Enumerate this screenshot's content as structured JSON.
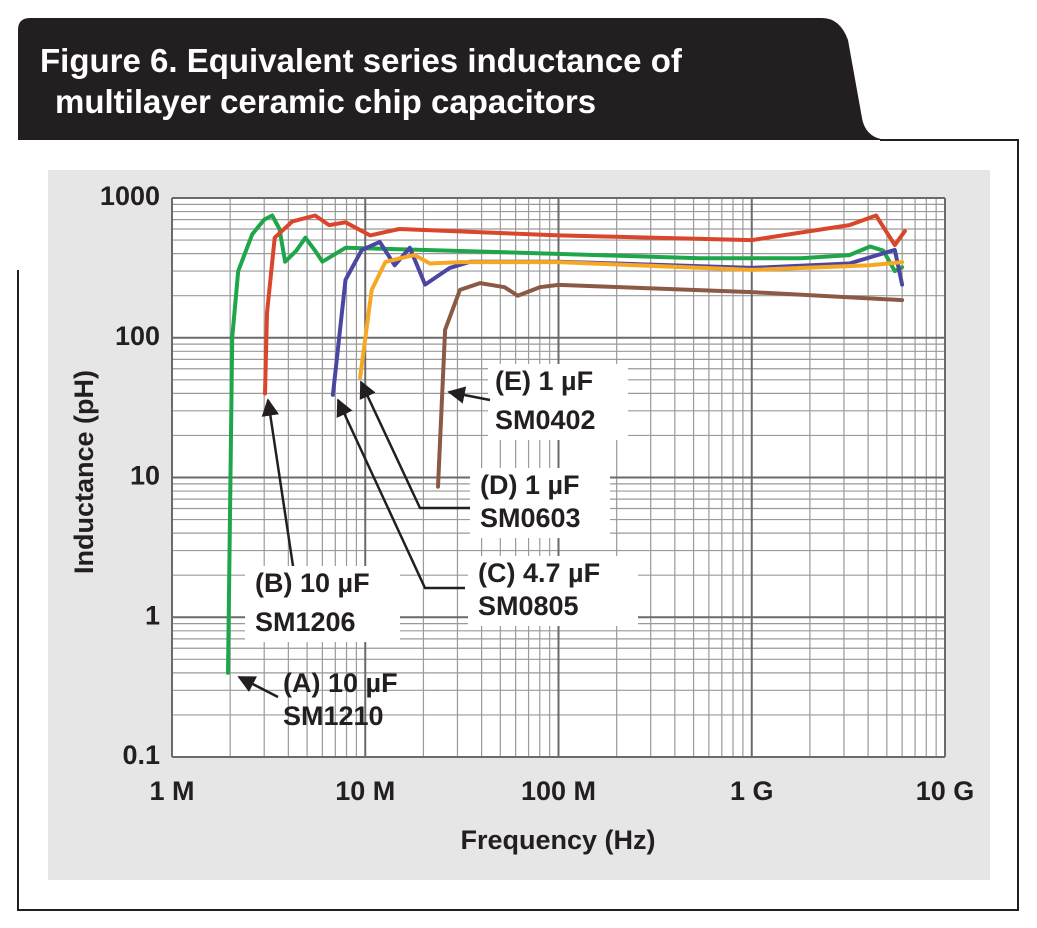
{
  "chart_data": {
    "type": "line",
    "title": [
      "Figure 6. Equivalent series inductance of",
      "multilayer ceramic chip capacitors"
    ],
    "x_label": "Frequency (Hz)",
    "y_label": "Inductance (pH)",
    "xscale": "log",
    "yscale": "log",
    "grid": true,
    "xlim": [
      1000000,
      10000000000
    ],
    "ylim": [
      0.1,
      1000
    ],
    "xticks": [
      {
        "value": 1000000,
        "label": "1 M"
      },
      {
        "value": 10000000,
        "label": "10 M"
      },
      {
        "value": 100000000,
        "label": "100 M"
      },
      {
        "value": 1000000000,
        "label": "1 G"
      },
      {
        "value": 10000000000,
        "label": "10 G"
      }
    ],
    "yticks": [
      0.1,
      1,
      10,
      100,
      1000
    ],
    "series": [
      {
        "name": "(A) 10 µF SM1210",
        "color": "#1fa64a",
        "x": [
          1950000,
          2000000,
          2050000,
          2200000,
          2600000,
          3000000,
          3300000,
          3600000,
          3850000,
          4400000,
          4900000,
          5500000,
          6000000,
          7900000,
          15000000,
          50000000,
          160000000,
          540000000,
          1800000000,
          3200000000,
          4100000000,
          4800000000,
          5500000000,
          6000000000
        ],
        "values": [
          0.4,
          7,
          100,
          300,
          550,
          700,
          750,
          600,
          350,
          420,
          520,
          420,
          350,
          440,
          430,
          410,
          390,
          370,
          370,
          390,
          450,
          420,
          300,
          320
        ]
      },
      {
        "name": "(B) 10 µF SM1206",
        "color": "#d9462b",
        "x": [
          3030000,
          3100000,
          3400000,
          4200000,
          5500000,
          6500000,
          7900000,
          10600000,
          15000000,
          100000000,
          1000000000,
          3200000000,
          4400000000,
          5500000000,
          6200000000
        ],
        "values": [
          40,
          150,
          520,
          680,
          750,
          640,
          670,
          540,
          600,
          540,
          500,
          640,
          750,
          460,
          580
        ]
      },
      {
        "name": "(C) 4.7 µF SM0805",
        "color": "#4a47a3",
        "x": [
          6800000,
          7900000,
          9600000,
          11900000,
          14200000,
          17000000,
          20400000,
          27400000,
          35000000,
          100000000,
          1000000000,
          3200000000,
          5500000000,
          6000000000
        ],
        "values": [
          39,
          260,
          425,
          485,
          330,
          440,
          240,
          316,
          350,
          350,
          316,
          340,
          425,
          240
        ]
      },
      {
        "name": "(D) 1 µF SM0603",
        "color": "#f7a823",
        "x": [
          9400000,
          10800000,
          12700000,
          15100000,
          18000000,
          21600000,
          30900000,
          100000000,
          1000000000,
          4100000000,
          6000000000
        ],
        "values": [
          52,
          220,
          348,
          370,
          390,
          340,
          348,
          348,
          306,
          330,
          348
        ]
      },
      {
        "name": "(E) 1 µF SM0402",
        "color": "#8a5a44",
        "x": [
          23800000,
          25900000,
          30900000,
          39300000,
          52600000,
          61500000,
          80000000,
          100000000,
          1000000000,
          6000000000
        ],
        "values": [
          8.6,
          114,
          220,
          246,
          230,
          200,
          230,
          239,
          212,
          186
        ]
      }
    ],
    "annotations": [
      {
        "lines": [
          "(A) 10 µF",
          "SM1210"
        ]
      },
      {
        "lines": [
          "(B) 10 µF",
          "SM1206"
        ]
      },
      {
        "lines": [
          "(C) 4.7 µF",
          "SM0805"
        ]
      },
      {
        "lines": [
          "(D) 1 µF",
          "SM0603"
        ]
      },
      {
        "lines": [
          "(E) 1 µF",
          "SM0402"
        ]
      }
    ]
  }
}
